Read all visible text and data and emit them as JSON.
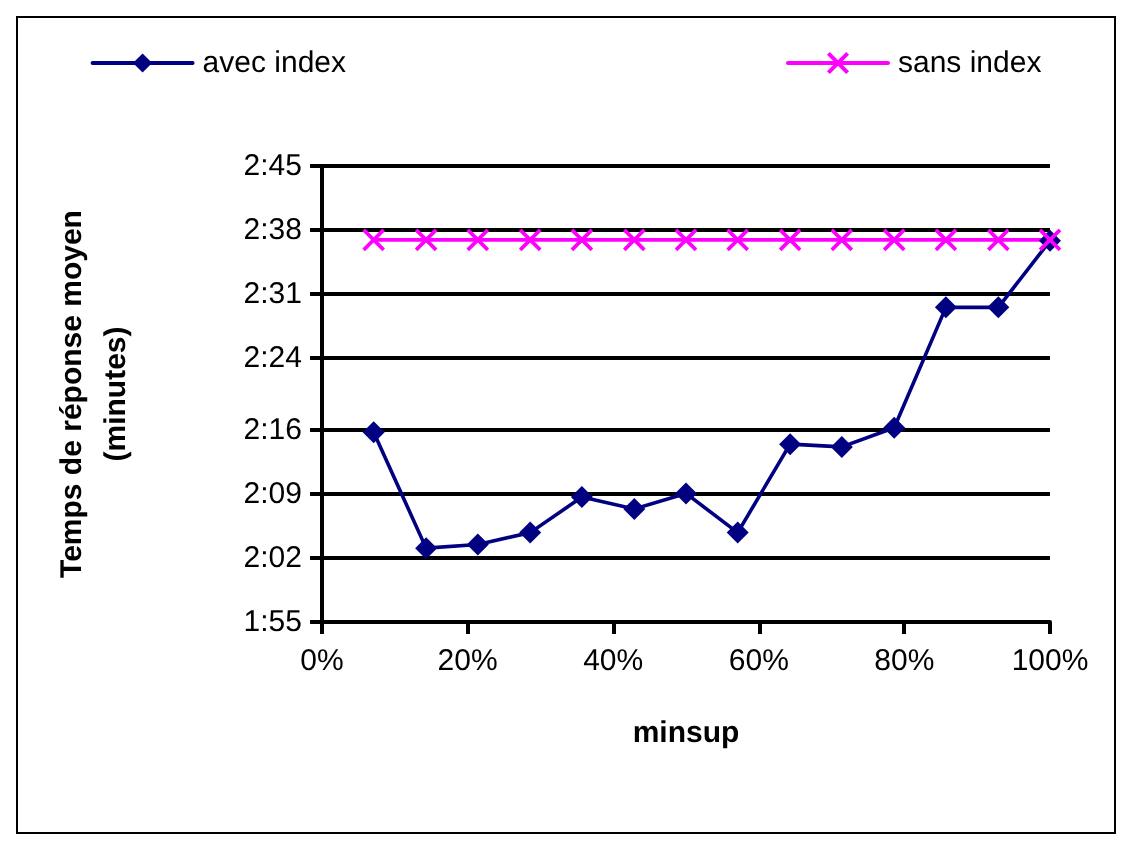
{
  "chart_data": {
    "type": "line",
    "xlabel": "minsup",
    "ylabel": "Temps de réponse moyen\n(minutes)",
    "xlim": [
      0,
      100
    ],
    "xticks": [
      {
        "value": 0,
        "label": "0%"
      },
      {
        "value": 20,
        "label": "20%"
      },
      {
        "value": 40,
        "label": "40%"
      },
      {
        "value": 60,
        "label": "60%"
      },
      {
        "value": 80,
        "label": "80%"
      },
      {
        "value": 100,
        "label": "100%"
      }
    ],
    "ylim": [
      115,
      165
    ],
    "yticks": [
      {
        "value": 115,
        "label": "1:55"
      },
      {
        "value": 122,
        "label": "2:02"
      },
      {
        "value": 129,
        "label": "2:09"
      },
      {
        "value": 136,
        "label": "2:16"
      },
      {
        "value": 144,
        "label": "2:24"
      },
      {
        "value": 151,
        "label": "2:31"
      },
      {
        "value": 158,
        "label": "2:38"
      },
      {
        "value": 165,
        "label": "2:45"
      }
    ],
    "x": [
      7.1,
      14.3,
      21.4,
      28.6,
      35.7,
      42.9,
      50,
      57.1,
      64.3,
      71.4,
      78.6,
      85.7,
      92.9,
      100
    ],
    "series": [
      {
        "name": "avec index",
        "color": "#000080",
        "marker": "diamond",
        "values": [
          135.8,
          123.1,
          123.5,
          124.8,
          128.7,
          127.4,
          129.1,
          124.8,
          134.5,
          134.2,
          136.3,
          149.5,
          149.5,
          156.8
        ]
      },
      {
        "name": "sans index",
        "color": "#ff00ff",
        "marker": "cross",
        "values": [
          156.9,
          156.9,
          156.9,
          156.9,
          156.9,
          156.9,
          156.9,
          156.9,
          156.9,
          156.9,
          156.9,
          156.9,
          156.9,
          156.9
        ]
      }
    ],
    "grid": "y",
    "legend": "top",
    "line_style": "solid"
  }
}
